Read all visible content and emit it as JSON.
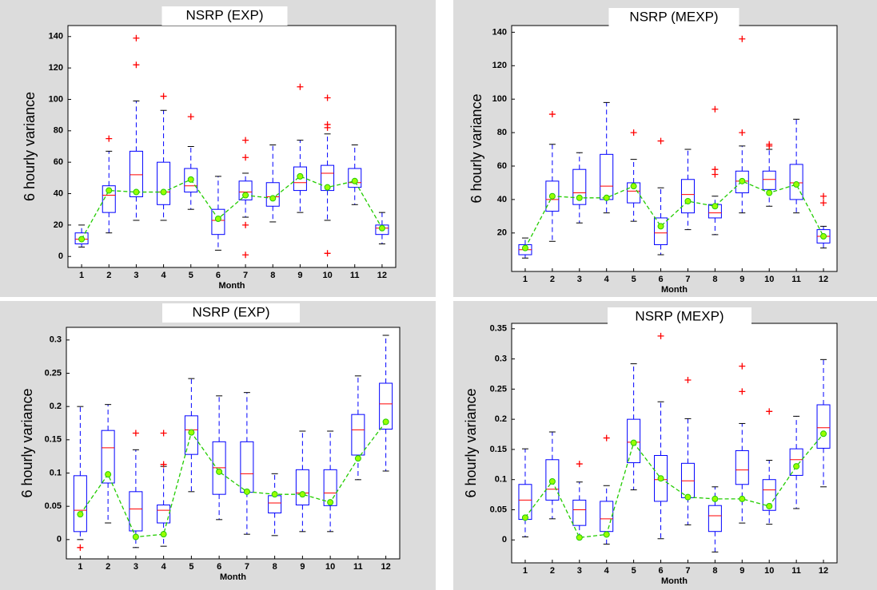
{
  "chart_data": [
    {
      "type": "box",
      "title": "NSRP (EXP)",
      "ylabel": "6 hourly variance",
      "xlabel": "Month",
      "categories": [
        "1",
        "2",
        "3",
        "4",
        "5",
        "6",
        "7",
        "8",
        "9",
        "10",
        "11",
        "12"
      ],
      "whislo": [
        6,
        15,
        23,
        23,
        30,
        4,
        25,
        22,
        28,
        23,
        33,
        8
      ],
      "q1": [
        8,
        28,
        38,
        33,
        41,
        14,
        36,
        32,
        42,
        42,
        44,
        14
      ],
      "median": [
        11,
        39,
        52,
        41,
        45,
        23,
        41,
        38,
        47,
        53,
        47,
        18
      ],
      "q3": [
        15,
        45,
        67,
        60,
        56,
        30,
        48,
        47,
        57,
        58,
        56,
        20
      ],
      "whishi": [
        20,
        67,
        99,
        93,
        70,
        51,
        53,
        71,
        74,
        78,
        71,
        28
      ],
      "outliers": [
        [],
        [
          75
        ],
        [
          122,
          139
        ],
        [
          102
        ],
        [
          89
        ],
        [],
        [
          1,
          20,
          63,
          74
        ],
        [],
        [
          108
        ],
        [
          2,
          82,
          84,
          101
        ],
        [],
        []
      ],
      "mean": [
        11,
        42,
        41,
        41,
        49,
        24,
        39,
        37,
        51,
        44,
        48,
        18
      ],
      "ylim": [
        -7,
        147
      ],
      "yticks": [
        0,
        20,
        40,
        60,
        80,
        100,
        120,
        140
      ],
      "box_color": "#0000ff",
      "median_color": "#ff0000",
      "outlier_color": "#ff0000",
      "mean_color": "#22cc00",
      "mean_fill": "#99ff00"
    },
    {
      "type": "box",
      "title": "NSRP (MEXP)",
      "ylabel": "6 hourly variance",
      "xlabel": "Month",
      "categories": [
        "1",
        "2",
        "3",
        "4",
        "5",
        "6",
        "7",
        "8",
        "9",
        "10",
        "11",
        "12"
      ],
      "whislo": [
        5,
        15,
        26,
        32,
        27,
        7,
        22,
        19,
        32,
        36,
        32,
        11
      ],
      "q1": [
        7,
        33,
        37,
        40,
        38,
        13,
        32,
        29,
        44,
        46,
        40,
        14
      ],
      "median": [
        10,
        40,
        44,
        48,
        45,
        20,
        43,
        32,
        51,
        52,
        50,
        18
      ],
      "q3": [
        13,
        51,
        58,
        67,
        50,
        29,
        52,
        37,
        57,
        57,
        61,
        22
      ],
      "whishi": [
        17,
        73,
        68,
        98,
        64,
        47,
        70,
        42,
        72,
        70,
        88,
        24
      ],
      "outliers": [
        [],
        [
          91
        ],
        [],
        [],
        [
          80
        ],
        [
          75
        ],
        [],
        [
          55,
          58,
          94
        ],
        [
          80,
          136
        ],
        [
          72,
          73
        ],
        [],
        [
          38,
          42
        ]
      ],
      "mean": [
        11,
        42,
        41,
        41,
        48,
        24,
        39,
        36,
        51,
        44,
        49,
        18
      ],
      "ylim": [
        -3,
        144
      ],
      "yticks": [
        20,
        40,
        60,
        80,
        100,
        120,
        140
      ],
      "box_color": "#0000ff",
      "median_color": "#ff0000",
      "outlier_color": "#ff0000",
      "mean_color": "#22cc00",
      "mean_fill": "#99ff00"
    },
    {
      "type": "box",
      "title": "NSRP (EXP)",
      "ylabel": "6 hourly variance",
      "xlabel": "Month",
      "categories": [
        "1",
        "2",
        "3",
        "4",
        "5",
        "6",
        "7",
        "8",
        "9",
        "10",
        "11",
        "12"
      ],
      "whislo": [
        0,
        0.025,
        -0.012,
        -0.01,
        0.072,
        0.03,
        0.008,
        0.006,
        0.012,
        0.012,
        0.09,
        0.103
      ],
      "q1": [
        0.012,
        0.085,
        0.013,
        0.025,
        0.128,
        0.068,
        0.071,
        0.04,
        0.052,
        0.051,
        0.127,
        0.166
      ],
      "median": [
        0.044,
        0.138,
        0.046,
        0.044,
        0.165,
        0.108,
        0.099,
        0.055,
        0.07,
        0.07,
        0.165,
        0.204
      ],
      "q3": [
        0.096,
        0.164,
        0.072,
        0.052,
        0.186,
        0.147,
        0.147,
        0.066,
        0.105,
        0.105,
        0.188,
        0.235
      ],
      "whishi": [
        0.2,
        0.203,
        0.135,
        0.11,
        0.242,
        0.216,
        0.221,
        0.099,
        0.163,
        0.163,
        0.246,
        0.307
      ],
      "outliers": [
        [
          -0.012
        ],
        [],
        [
          0.16
        ],
        [
          0.113,
          0.16
        ],
        [],
        [],
        [],
        [],
        [],
        [],
        [],
        []
      ],
      "mean": [
        0.038,
        0.098,
        0.004,
        0.008,
        0.161,
        0.102,
        0.072,
        0.068,
        0.068,
        0.056,
        0.122,
        0.177
      ],
      "ylim": [
        -0.029,
        0.319
      ],
      "yticks": [
        0,
        0.05,
        0.1,
        0.15,
        0.2,
        0.25,
        0.3
      ],
      "box_color": "#0000ff",
      "median_color": "#ff0000",
      "outlier_color": "#ff0000",
      "mean_color": "#22cc00",
      "mean_fill": "#99ff00"
    },
    {
      "type": "box",
      "title": "NSRP (MEXP)",
      "ylabel": "6 hourly variance",
      "xlabel": "Month",
      "categories": [
        "1",
        "2",
        "3",
        "4",
        "5",
        "6",
        "7",
        "8",
        "9",
        "10",
        "11",
        "12"
      ],
      "whislo": [
        0.005,
        0.035,
        0.005,
        -0.007,
        0.083,
        0.002,
        0.025,
        -0.02,
        0.028,
        0.026,
        0.052,
        0.088
      ],
      "q1": [
        0.034,
        0.066,
        0.024,
        0.014,
        0.128,
        0.064,
        0.07,
        0.014,
        0.092,
        0.049,
        0.107,
        0.152
      ],
      "median": [
        0.066,
        0.084,
        0.05,
        0.035,
        0.162,
        0.1,
        0.098,
        0.04,
        0.116,
        0.083,
        0.133,
        0.186
      ],
      "q3": [
        0.092,
        0.133,
        0.066,
        0.064,
        0.2,
        0.14,
        0.127,
        0.057,
        0.148,
        0.1,
        0.151,
        0.224
      ],
      "whishi": [
        0.151,
        0.179,
        0.096,
        0.09,
        0.292,
        0.229,
        0.201,
        0.088,
        0.193,
        0.132,
        0.205,
        0.299
      ],
      "outliers": [
        [],
        [],
        [
          0.126
        ],
        [
          0.169
        ],
        [],
        [
          0.338
        ],
        [
          0.265
        ],
        [],
        [
          0.246,
          0.288
        ],
        [
          0.213
        ],
        [],
        []
      ],
      "mean": [
        0.037,
        0.097,
        0.004,
        0.009,
        0.161,
        0.102,
        0.071,
        0.068,
        0.068,
        0.056,
        0.122,
        0.176
      ],
      "ylim": [
        -0.038,
        0.359
      ],
      "yticks": [
        0,
        0.05,
        0.1,
        0.15,
        0.2,
        0.25,
        0.3,
        0.35
      ],
      "box_color": "#0000ff",
      "median_color": "#ff0000",
      "outlier_color": "#ff0000",
      "mean_color": "#22cc00",
      "mean_fill": "#99ff00"
    }
  ]
}
